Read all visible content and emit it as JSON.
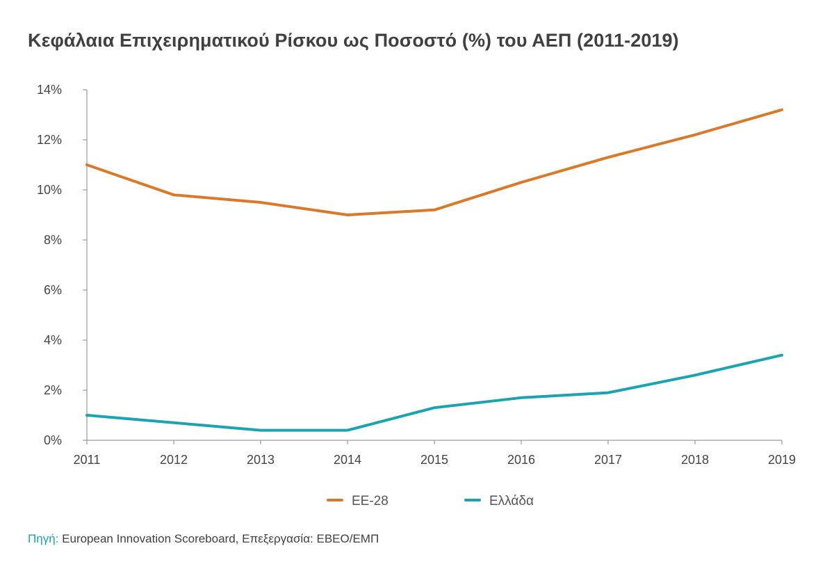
{
  "chart_data": {
    "type": "line",
    "title": "Κεφάλαια Επιχειρηματικού Ρίσκου ως Ποσοστό (%) του ΑΕΠ (2011-2019)",
    "xlabel": "",
    "ylabel": "",
    "x": [
      "2011",
      "2012",
      "2013",
      "2014",
      "2015",
      "2016",
      "2017",
      "2018",
      "2019"
    ],
    "ylim": [
      0,
      14
    ],
    "yticks": [
      0,
      2,
      4,
      6,
      8,
      10,
      12,
      14
    ],
    "ytick_labels": [
      "0%",
      "2%",
      "4%",
      "6%",
      "8%",
      "10%",
      "12%",
      "14%"
    ],
    "grid": false,
    "legend_position": "bottom",
    "series": [
      {
        "name": "ΕΕ-28",
        "color": "#d97a2b",
        "values": [
          11.0,
          9.8,
          9.5,
          9.0,
          9.2,
          10.3,
          11.3,
          12.2,
          13.2
        ]
      },
      {
        "name": "Ελλάδα",
        "color": "#1aa3b0",
        "values": [
          1.0,
          0.7,
          0.4,
          0.4,
          1.3,
          1.7,
          1.9,
          2.6,
          3.4
        ]
      }
    ]
  },
  "source": {
    "prefix": "Πηγή:",
    "text": " European Innovation Scoreboard, Επεξεργασία: ΕΒΕΟ/ΕΜΠ"
  }
}
